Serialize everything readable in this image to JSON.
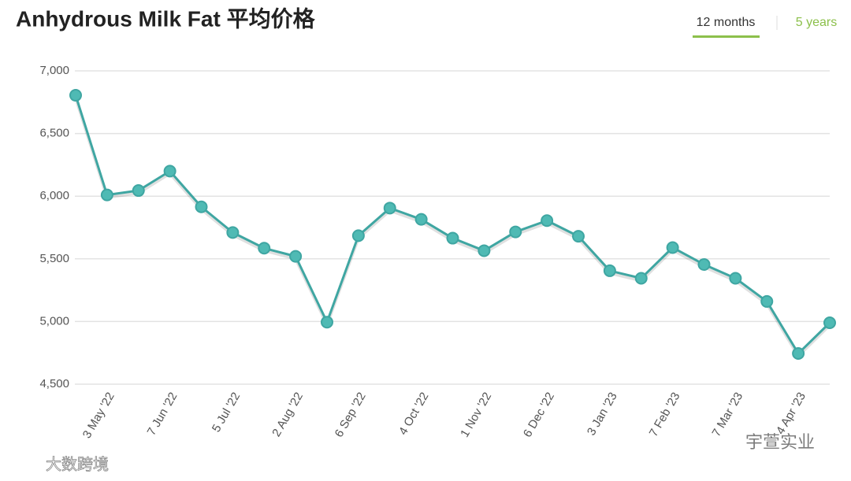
{
  "header": {
    "title": "Anhydrous Milk Fat 平均价格",
    "tabs": [
      "12 months",
      "5 years"
    ]
  },
  "watermarks": [
    "宇萱实业",
    "大数跨境"
  ],
  "chart_data": {
    "type": "line",
    "categories": [
      null,
      "3 May '22",
      null,
      "7 Jun '22",
      null,
      "5 Jul '22",
      null,
      "2 Aug '22",
      null,
      "6 Sep '22",
      null,
      "4 Oct '22",
      null,
      "1 Nov '22",
      null,
      "6 Dec '22",
      null,
      "3 Jan '23",
      null,
      "7 Feb '23",
      null,
      "7 Mar '23",
      null,
      "4 Apr '23",
      null
    ],
    "values": [
      6805,
      6010,
      6045,
      6200,
      5915,
      5710,
      5585,
      5520,
      4995,
      5685,
      5905,
      5815,
      5665,
      5565,
      5715,
      5805,
      5680,
      5405,
      5345,
      5590,
      5455,
      5345,
      5160,
      4745,
      4990
    ],
    "color": "#3fa6a2",
    "ylim": [
      4500,
      7000
    ],
    "yticks": [
      {
        "value": 4500,
        "label": "4,500"
      },
      {
        "value": 5000,
        "label": "5,000"
      },
      {
        "value": 5500,
        "label": "5,500"
      },
      {
        "value": 6000,
        "label": "6,000"
      },
      {
        "value": 6500,
        "label": "6,500"
      },
      {
        "value": 7000,
        "label": "7,000"
      }
    ],
    "grid": true
  }
}
